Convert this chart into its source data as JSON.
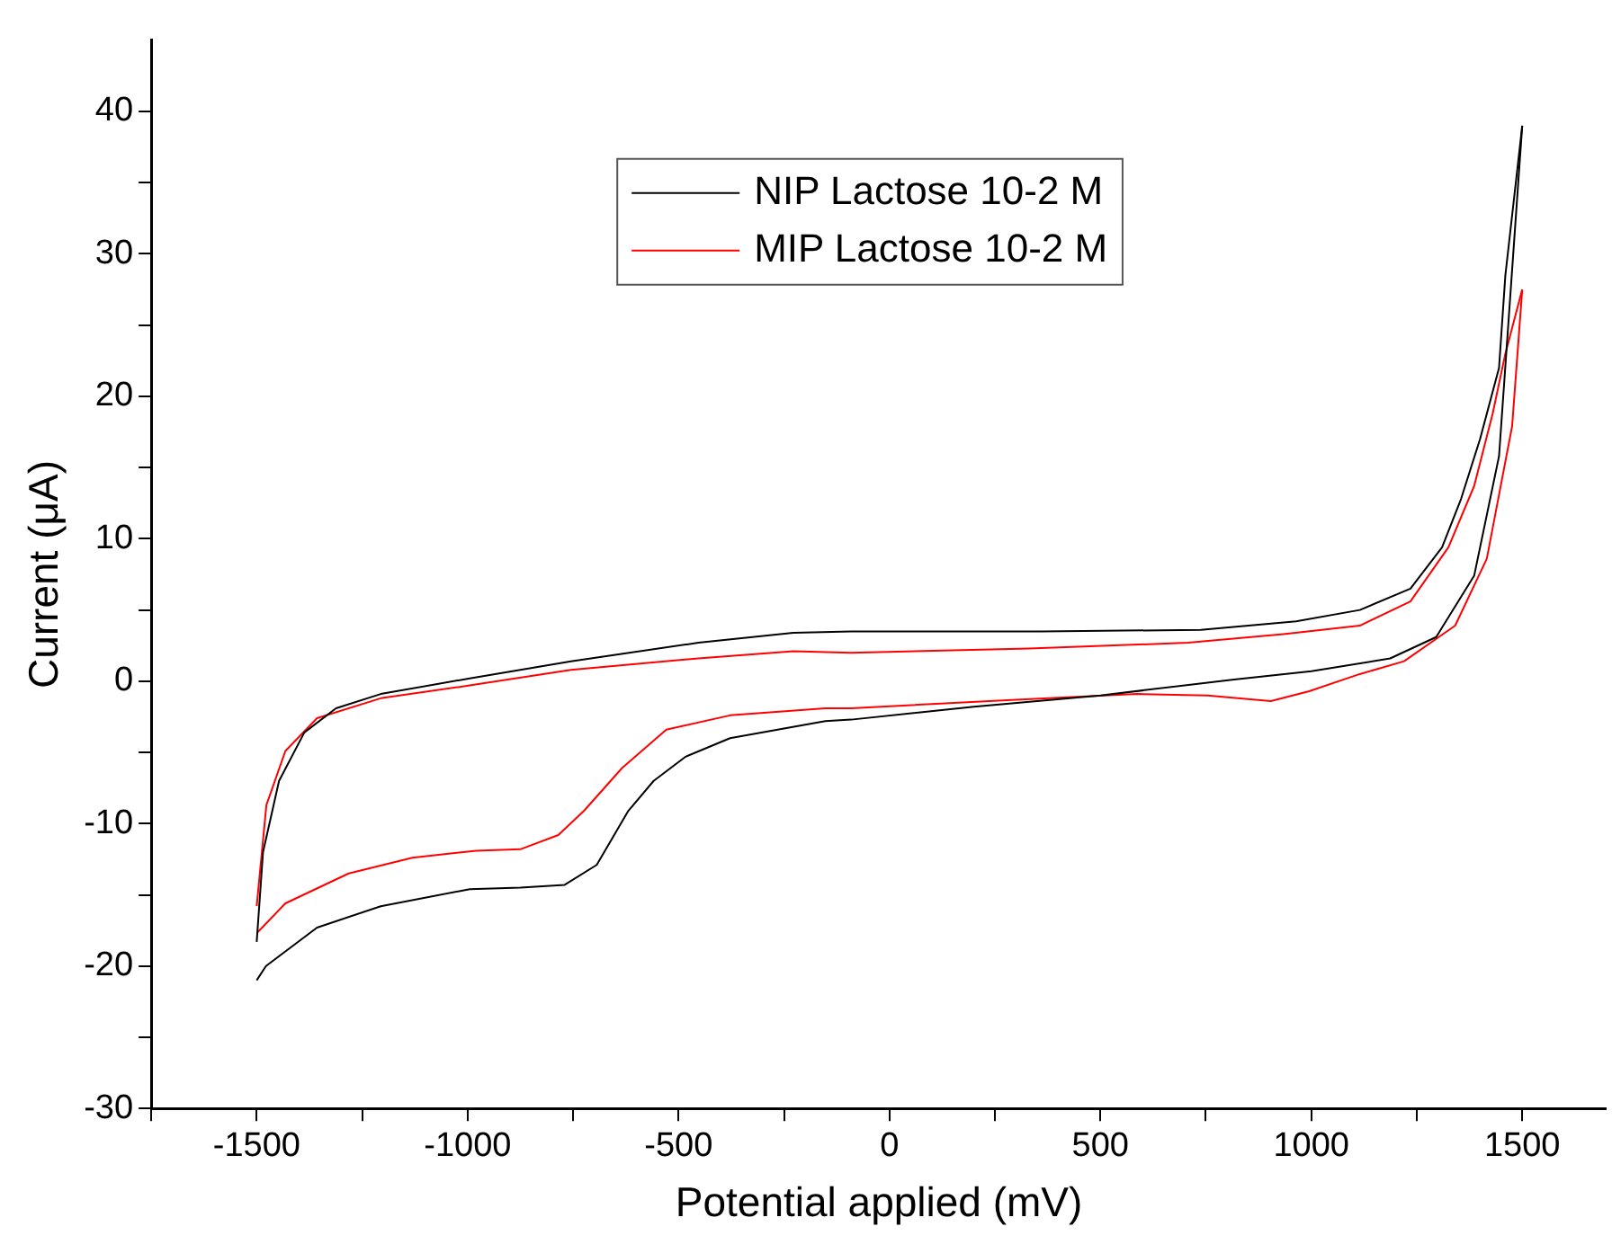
{
  "chart_data": {
    "type": "line",
    "xlabel": "Potential applied (mV)",
    "ylabel": "Current (μA)",
    "xlim": [
      -1750,
      1700
    ],
    "ylim": [
      -30,
      45
    ],
    "xticks": [
      {
        "value": -1750,
        "label": null
      },
      -1500,
      {
        "value": -1250,
        "label": null
      },
      -1000,
      {
        "value": -750,
        "label": null
      },
      -500,
      {
        "value": -250,
        "label": null
      },
      0,
      {
        "value": 250,
        "label": null
      },
      500,
      {
        "value": 750,
        "label": null
      },
      1000,
      {
        "value": 1250,
        "label": null
      },
      1500
    ],
    "yticks": [
      -30,
      {
        "value": -25,
        "label": null
      },
      -20,
      {
        "value": -15,
        "label": null
      },
      -10,
      {
        "value": -5,
        "label": null
      },
      0,
      {
        "value": 5,
        "label": null
      },
      10,
      {
        "value": 15,
        "label": null
      },
      20,
      {
        "value": 25,
        "label": null
      },
      30,
      {
        "value": 35,
        "label": null
      },
      40
    ],
    "legend": "top",
    "marker": "none",
    "line_style": "solid",
    "series": [
      {
        "name": "NIP Lactose 10-2 M",
        "color": "#000000",
        "x": [
          -1500,
          -1478,
          -1357,
          -1206,
          -995,
          -875,
          -770,
          -694,
          -619,
          -559,
          -483,
          -378,
          -152,
          -91,
          200,
          500,
          812,
          1000,
          1187,
          1296,
          1386,
          1445,
          1500
        ],
        "values": [
          -21,
          -20,
          -17.3,
          -15.8,
          -14.6,
          -14.5,
          -14.3,
          -12.9,
          -9.1,
          -7,
          -5.3,
          -4,
          -2.8,
          -2.7,
          -1.8,
          -1,
          0.1,
          0.7,
          1.6,
          3.1,
          7.4,
          15.8,
          39
        ]
      },
      {
        "color": "#000000",
        "x": [
          -1500,
          -1485,
          -1447,
          -1387,
          -1312,
          -1206,
          -995,
          -755,
          -453,
          -228,
          -91,
          361,
          738,
          964,
          1115,
          1235,
          1310,
          1355,
          1400,
          1445,
          1460,
          1500
        ],
        "values": [
          -18.3,
          -12,
          -7,
          -3.6,
          -1.9,
          -0.9,
          0.2,
          1.4,
          2.7,
          3.4,
          3.5,
          3.5,
          3.6,
          4.2,
          5,
          6.5,
          9.4,
          12.8,
          17,
          22,
          28.5,
          39
        ]
      },
      {
        "name": "MIP Lactose 10-2 M",
        "color": "#ff0000",
        "x": [
          -1500,
          -1432,
          -1282,
          -1131,
          -980,
          -875,
          -785,
          -724,
          -634,
          -529,
          -378,
          -152,
          -91,
          300,
          587,
          754,
          904,
          995,
          1115,
          1220,
          1341,
          1416,
          1476,
          1500
        ],
        "values": [
          -17.7,
          -15.6,
          -13.5,
          -12.4,
          -11.9,
          -11.8,
          -10.8,
          -9.1,
          -6.1,
          -3.4,
          -2.4,
          -1.9,
          -1.9,
          -1.3,
          -0.9,
          -1,
          -1.4,
          -0.7,
          0.5,
          1.4,
          3.9,
          8.6,
          17.9,
          27.5
        ]
      },
      {
        "color": "#ff0000",
        "x": [
          -1500,
          -1477,
          -1432,
          -1357,
          -1206,
          -995,
          -755,
          -453,
          -228,
          -91,
          331,
          708,
          934,
          1115,
          1235,
          1325,
          1386,
          1430,
          1460,
          1500
        ],
        "values": [
          -15.8,
          -8.7,
          -4.9,
          -2.6,
          -1.2,
          -0.3,
          0.8,
          1.6,
          2.1,
          2,
          2.3,
          2.7,
          3.3,
          3.9,
          5.6,
          9.4,
          13.7,
          18.8,
          23,
          27.5
        ]
      }
    ]
  }
}
